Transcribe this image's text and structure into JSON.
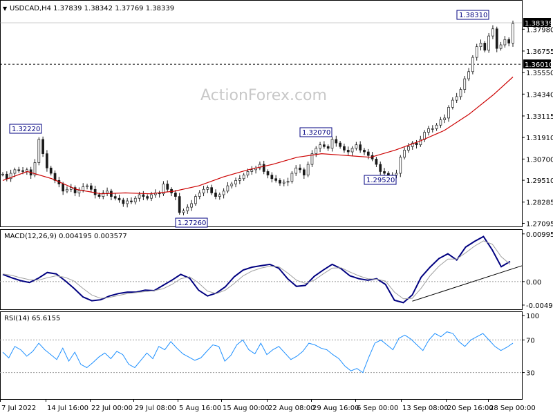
{
  "chart_data": [
    {
      "type": "candlestick",
      "panel": "price",
      "header": {
        "symbol": "USDCAD,H4",
        "open": "1.37839",
        "high": "1.38342",
        "low": "1.37769",
        "close": "1.38339"
      },
      "watermark": "ActionForex.com",
      "ylim": [
        1.2692,
        1.3892
      ],
      "y_ticks": [
        "1.37980",
        "1.36755",
        "1.35550",
        "1.34340",
        "1.33115",
        "1.31910",
        "1.30700",
        "1.29510",
        "1.28285",
        "1.27095"
      ],
      "last_price_label": "1.38339",
      "horizontal_level": {
        "value": 1.3601,
        "label": "1.36010",
        "style": "dashed"
      },
      "annotations": [
        {
          "label": "1.32220",
          "x": "14 Jul 08:00"
        },
        {
          "label": "1.27260",
          "x": "5 Aug 16:00"
        },
        {
          "label": "1.32070",
          "x": "1 Sep 00:00"
        },
        {
          "label": "1.29520",
          "x": "13 Sep 00:00"
        },
        {
          "label": "1.38310",
          "x": "28 Sep 08:00"
        }
      ],
      "close_series": [
        [
          "7 Jul 00:00",
          1.2985
        ],
        [
          "8 Jul 00:00",
          1.296
        ],
        [
          "8 Jul 12:00",
          1.299
        ],
        [
          "11 Jul 00:00",
          1.301
        ],
        [
          "11 Jul 12:00",
          1.3005
        ],
        [
          "12 Jul 00:00",
          1.3
        ],
        [
          "12 Jul 12:00",
          1.301
        ],
        [
          "13 Jul 00:00",
          1.298
        ],
        [
          "13 Jul 12:00",
          1.305
        ],
        [
          "14 Jul 08:00",
          1.318
        ],
        [
          "14 Jul 16:00",
          1.31
        ],
        [
          "15 Jul 00:00",
          1.302
        ],
        [
          "15 Jul 12:00",
          1.299
        ],
        [
          "18 Jul 00:00",
          1.295
        ],
        [
          "18 Jul 12:00",
          1.293
        ],
        [
          "19 Jul 00:00",
          1.289
        ],
        [
          "19 Jul 12:00",
          1.29
        ],
        [
          "20 Jul 00:00",
          1.291
        ],
        [
          "20 Jul 12:00",
          1.288
        ],
        [
          "21 Jul 00:00",
          1.2895
        ],
        [
          "21 Jul 12:00",
          1.2915
        ],
        [
          "22 Jul 00:00",
          1.292
        ],
        [
          "22 Jul 12:00",
          1.29
        ],
        [
          "25 Jul 00:00",
          1.287
        ],
        [
          "25 Jul 12:00",
          1.286
        ],
        [
          "26 Jul 00:00",
          1.288
        ],
        [
          "26 Jul 12:00",
          1.289
        ],
        [
          "27 Jul 00:00",
          1.286
        ],
        [
          "27 Jul 12:00",
          1.285
        ],
        [
          "28 Jul 00:00",
          1.284
        ],
        [
          "28 Jul 12:00",
          1.282
        ],
        [
          "29 Jul 00:00",
          1.2835
        ],
        [
          "29 Jul 08:00",
          1.283
        ],
        [
          "29 Jul 16:00",
          1.285
        ],
        [
          "1 Aug 00:00",
          1.287
        ],
        [
          "1 Aug 12:00",
          1.286
        ],
        [
          "2 Aug 00:00",
          1.285
        ],
        [
          "2 Aug 12:00",
          1.287
        ],
        [
          "3 Aug 00:00",
          1.288
        ],
        [
          "3 Aug 12:00",
          1.2875
        ],
        [
          "4 Aug 00:00",
          1.293
        ],
        [
          "4 Aug 12:00",
          1.29
        ],
        [
          "5 Aug 00:00",
          1.288
        ],
        [
          "5 Aug 08:00",
          1.286
        ],
        [
          "5 Aug 16:00",
          1.277
        ],
        [
          "8 Aug 00:00",
          1.278
        ],
        [
          "8 Aug 12:00",
          1.28
        ],
        [
          "9 Aug 00:00",
          1.282
        ],
        [
          "9 Aug 12:00",
          1.286
        ],
        [
          "10 Aug 00:00",
          1.288
        ],
        [
          "10 Aug 12:00",
          1.29
        ],
        [
          "11 Aug 00:00",
          1.291
        ],
        [
          "11 Aug 12:00",
          1.288
        ],
        [
          "12 Aug 00:00",
          1.286
        ],
        [
          "12 Aug 12:00",
          1.287
        ],
        [
          "15 Aug 00:00",
          1.289
        ],
        [
          "15 Aug 12:00",
          1.292
        ],
        [
          "16 Aug 00:00",
          1.293
        ],
        [
          "16 Aug 12:00",
          1.295
        ],
        [
          "17 Aug 00:00",
          1.296
        ],
        [
          "17 Aug 12:00",
          1.298
        ],
        [
          "18 Aug 00:00",
          1.3
        ],
        [
          "18 Aug 12:00",
          1.301
        ],
        [
          "19 Aug 00:00",
          1.302
        ],
        [
          "19 Aug 12:00",
          1.304
        ],
        [
          "22 Aug 00:00",
          1.3
        ],
        [
          "22 Aug 08:00",
          1.298
        ],
        [
          "22 Aug 16:00",
          1.296
        ],
        [
          "23 Aug 00:00",
          1.295
        ],
        [
          "23 Aug 12:00",
          1.2935
        ],
        [
          "24 Aug 00:00",
          1.294
        ],
        [
          "24 Aug 12:00",
          1.2945
        ],
        [
          "25 Aug 00:00",
          1.299
        ],
        [
          "25 Aug 12:00",
          1.302
        ],
        [
          "26 Aug 00:00",
          1.301
        ],
        [
          "26 Aug 12:00",
          1.298
        ],
        [
          "29 Aug 00:00",
          1.304
        ],
        [
          "29 Aug 16:00",
          1.31
        ],
        [
          "30 Aug 00:00",
          1.313
        ],
        [
          "30 Aug 12:00",
          1.315
        ],
        [
          "31 Aug 00:00",
          1.314
        ],
        [
          "31 Aug 12:00",
          1.313
        ],
        [
          "1 Sep 00:00",
          1.318
        ],
        [
          "1 Sep 12:00",
          1.316
        ],
        [
          "2 Sep 00:00",
          1.314
        ],
        [
          "2 Sep 12:00",
          1.312
        ],
        [
          "5 Sep 00:00",
          1.311
        ],
        [
          "5 Sep 12:00",
          1.313
        ],
        [
          "6 Sep 00:00",
          1.315
        ],
        [
          "6 Sep 12:00",
          1.312
        ],
        [
          "7 Sep 00:00",
          1.311
        ],
        [
          "7 Sep 12:00",
          1.309
        ],
        [
          "8 Sep 00:00",
          1.307
        ],
        [
          "8 Sep 12:00",
          1.304
        ],
        [
          "9 Sep 00:00",
          1.3
        ],
        [
          "9 Sep 12:00",
          1.299
        ],
        [
          "12 Sep 00:00",
          1.297
        ],
        [
          "12 Sep 12:00",
          1.298
        ],
        [
          "13 Sep 00:00",
          1.299
        ],
        [
          "13 Sep 08:00",
          1.308
        ],
        [
          "13 Sep 16:00",
          1.312
        ],
        [
          "14 Sep 00:00",
          1.314
        ],
        [
          "14 Sep 12:00",
          1.316
        ],
        [
          "15 Sep 00:00",
          1.315
        ],
        [
          "15 Sep 12:00",
          1.318
        ],
        [
          "16 Sep 00:00",
          1.322
        ],
        [
          "16 Sep 12:00",
          1.324
        ],
        [
          "19 Sep 00:00",
          1.324
        ],
        [
          "19 Sep 12:00",
          1.326
        ],
        [
          "20 Sep 00:00",
          1.329
        ],
        [
          "20 Sep 16:00",
          1.33
        ],
        [
          "21 Sep 00:00",
          1.336
        ],
        [
          "21 Sep 12:00",
          1.34
        ],
        [
          "22 Sep 00:00",
          1.342
        ],
        [
          "22 Sep 12:00",
          1.346
        ],
        [
          "23 Sep 00:00",
          1.352
        ],
        [
          "23 Sep 12:00",
          1.356
        ],
        [
          "26 Sep 00:00",
          1.364
        ],
        [
          "26 Sep 12:00",
          1.37
        ],
        [
          "27 Sep 00:00",
          1.372
        ],
        [
          "27 Sep 12:00",
          1.368
        ],
        [
          "28 Sep 00:00",
          1.376
        ],
        [
          "28 Sep 08:00",
          1.38
        ],
        [
          "28 Sep 16:00",
          1.369
        ],
        [
          "29 Sep 00:00",
          1.371
        ],
        [
          "29 Sep 12:00",
          1.374
        ],
        [
          "30 Sep 00:00",
          1.372
        ],
        [
          "30 Sep 08:00",
          1.383
        ]
      ],
      "moving_average": [
        [
          0,
          1.295
        ],
        [
          15,
          1.3
        ],
        [
          30,
          1.296
        ],
        [
          45,
          1.29
        ],
        [
          60,
          1.2875
        ],
        [
          75,
          1.288
        ],
        [
          90,
          1.2875
        ],
        [
          105,
          1.289
        ],
        [
          120,
          1.292
        ],
        [
          135,
          1.297
        ],
        [
          150,
          1.301
        ],
        [
          165,
          1.304
        ],
        [
          180,
          1.308
        ],
        [
          195,
          1.31
        ],
        [
          210,
          1.309
        ],
        [
          225,
          1.308
        ],
        [
          240,
          1.312
        ],
        [
          255,
          1.317
        ],
        [
          270,
          1.323
        ],
        [
          285,
          1.332
        ],
        [
          300,
          1.343
        ],
        [
          312,
          1.353
        ]
      ]
    },
    {
      "type": "line",
      "panel": "macd",
      "title": "MACD(12,26,9) 0.004195 0.003577",
      "ylim": [
        -0.0055,
        0.0105
      ],
      "y_ticks": [
        "0.009956",
        "0.00",
        "-0.004912"
      ],
      "series": [
        {
          "name": "MACD",
          "color": "#000080",
          "values": [
            0.0015,
            0.0008,
            0.0002,
            -0.0002,
            0.0007,
            0.0019,
            0.0016,
            0.0002,
            -0.0014,
            -0.0032,
            -0.004,
            -0.0038,
            -0.003,
            -0.0025,
            -0.0022,
            -0.0022,
            -0.0018,
            -0.0019,
            -0.0008,
            0.0003,
            0.0015,
            0.0007,
            -0.0018,
            -0.003,
            -0.0024,
            -0.0011,
            0.001,
            0.0024,
            0.003,
            0.0033,
            0.0036,
            0.0028,
            0.0006,
            -0.001,
            -0.0008,
            0.0011,
            0.0024,
            0.0036,
            0.0027,
            0.0012,
            0.0006,
            0.0003,
            0.0006,
            -0.0006,
            -0.0039,
            -0.0044,
            -0.0028,
            0.0009,
            0.003,
            0.0048,
            0.0058,
            0.0045,
            0.0072,
            0.0084,
            0.0094,
            0.0066,
            0.0031,
            0.0042
          ]
        },
        {
          "name": "Signal",
          "color": "#a0a0a0",
          "values": [
            0.0016,
            0.0013,
            0.0008,
            0.0004,
            0.0003,
            0.0008,
            0.0012,
            0.0009,
            0.0001,
            -0.0014,
            -0.0028,
            -0.0035,
            -0.0033,
            -0.0029,
            -0.0025,
            -0.0023,
            -0.0021,
            -0.0019,
            -0.0015,
            -0.0006,
            0.0006,
            0.001,
            -0.0003,
            -0.002,
            -0.0025,
            -0.0018,
            -0.0004,
            0.0012,
            0.0022,
            0.0028,
            0.0032,
            0.0031,
            0.0018,
            0.0003,
            -0.0004,
            0.0003,
            0.0016,
            0.0028,
            0.0029,
            0.002,
            0.0012,
            0.0006,
            0.0005,
            0.0001,
            -0.0022,
            -0.0036,
            -0.0035,
            -0.0014,
            0.0012,
            0.0032,
            0.0047,
            0.0047,
            0.006,
            0.0074,
            0.0085,
            0.0078,
            0.0052,
            0.0036
          ]
        }
      ],
      "trendline": [
        [
          0.79,
          -0.0041
        ],
        [
          1.0,
          0.0033
        ]
      ]
    },
    {
      "type": "line",
      "panel": "rsi",
      "title": "RSI(14) 65.6155",
      "ylim": [
        0,
        100
      ],
      "y_ticks": [
        "100",
        "70",
        "30"
      ],
      "levels": [
        70,
        30
      ],
      "series": [
        {
          "name": "RSI",
          "color": "#1e90ff",
          "values": [
            55,
            48,
            62,
            58,
            50,
            56,
            66,
            58,
            52,
            46,
            60,
            44,
            55,
            40,
            36,
            42,
            49,
            54,
            47,
            56,
            52,
            40,
            36,
            45,
            54,
            47,
            62,
            58,
            68,
            60,
            53,
            49,
            45,
            48,
            56,
            64,
            62,
            44,
            51,
            64,
            70,
            58,
            53,
            66,
            52,
            58,
            62,
            54,
            46,
            50,
            56,
            66,
            64,
            60,
            58,
            52,
            47,
            38,
            32,
            35,
            30,
            49,
            66,
            70,
            64,
            58,
            72,
            76,
            71,
            64,
            57,
            70,
            78,
            74,
            80,
            78,
            68,
            62,
            70,
            74,
            78,
            70,
            62,
            57,
            61,
            66
          ]
        }
      ]
    }
  ],
  "x_axis_labels": [
    "7 Jul 2022",
    "14 Jul 16:00",
    "22 Jul 00:00",
    "29 Jul 08:00",
    "5 Aug 16:00",
    "15 Aug 00:00",
    "22 Aug 08:00",
    "29 Aug 16:00",
    "6 Sep 00:00",
    "13 Sep 08:00",
    "20 Sep 16:00",
    "28 Sep 00:00"
  ]
}
